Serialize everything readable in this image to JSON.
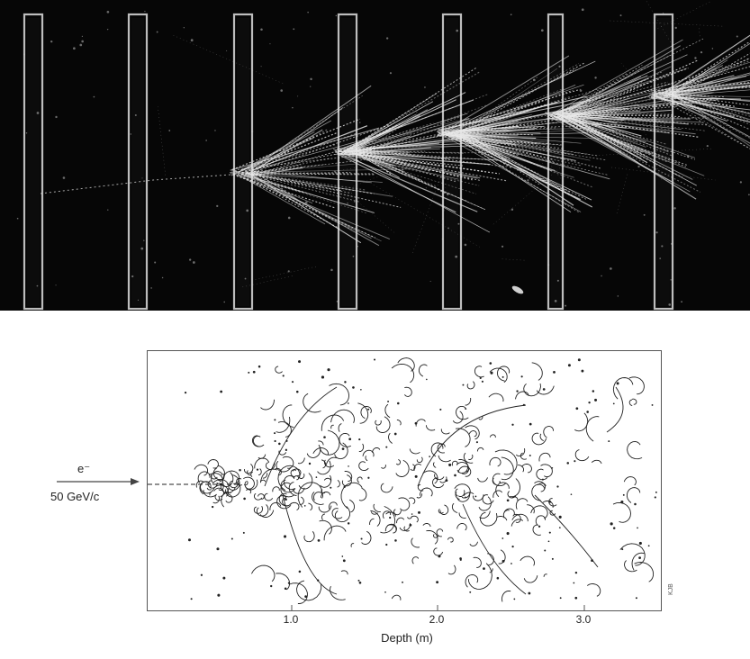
{
  "photo": {
    "description_icon": "bubble-chamber-photo"
  },
  "simulation": {
    "beam_particle": "e⁻",
    "beam_momentum": "50 GeV/c",
    "x_ticks": [
      "1.0",
      "2.0",
      "3.0"
    ],
    "x_axis_label": "Depth (m)",
    "corner_mark": "KJB"
  },
  "colors": {
    "photo_background": "#060606",
    "track": "#e8e8e8",
    "ink": "#222222"
  }
}
